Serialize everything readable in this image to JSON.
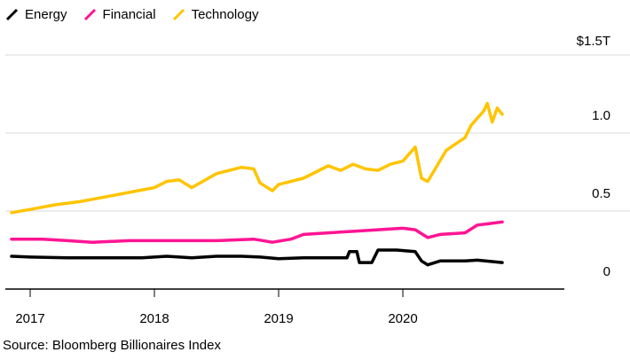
{
  "colors": {
    "energy": "#000000",
    "financial": "#ff1493",
    "technology": "#ffc400",
    "grid": "#d9d9d9",
    "axis": "#000000"
  },
  "source": "Source: Bloomberg Billionaires Index",
  "chart_data": {
    "type": "line",
    "y_unit_label": "$1.5T",
    "ylim": [
      0,
      1.5
    ],
    "y_ticks": [
      {
        "value": 0,
        "label": "0"
      },
      {
        "value": 0.5,
        "label": "0.5"
      },
      {
        "value": 1.0,
        "label": "1.0"
      },
      {
        "value": 1.5,
        "label": "$1.5T"
      }
    ],
    "xlim": [
      2016.8,
      2021.3
    ],
    "x_ticks": [
      {
        "value": 2017,
        "label": "2017"
      },
      {
        "value": 2018,
        "label": "2018"
      },
      {
        "value": 2019,
        "label": "2019"
      },
      {
        "value": 2020,
        "label": "2020"
      }
    ],
    "grid": true,
    "legend_position": "top-left",
    "series": [
      {
        "name": "Energy",
        "color": "#000000",
        "points": [
          [
            2016.85,
            0.21
          ],
          [
            2017.0,
            0.205
          ],
          [
            2017.3,
            0.2
          ],
          [
            2017.6,
            0.2
          ],
          [
            2017.9,
            0.2
          ],
          [
            2018.1,
            0.21
          ],
          [
            2018.3,
            0.2
          ],
          [
            2018.5,
            0.21
          ],
          [
            2018.7,
            0.21
          ],
          [
            2018.85,
            0.205
          ],
          [
            2019.0,
            0.195
          ],
          [
            2019.2,
            0.2
          ],
          [
            2019.4,
            0.2
          ],
          [
            2019.55,
            0.2
          ],
          [
            2019.57,
            0.24
          ],
          [
            2019.63,
            0.24
          ],
          [
            2019.65,
            0.17
          ],
          [
            2019.75,
            0.17
          ],
          [
            2019.8,
            0.25
          ],
          [
            2019.95,
            0.25
          ],
          [
            2020.1,
            0.24
          ],
          [
            2020.15,
            0.18
          ],
          [
            2020.2,
            0.155
          ],
          [
            2020.3,
            0.18
          ],
          [
            2020.5,
            0.18
          ],
          [
            2020.6,
            0.185
          ],
          [
            2020.8,
            0.17
          ]
        ]
      },
      {
        "name": "Financial",
        "color": "#ff1493",
        "points": [
          [
            2016.85,
            0.32
          ],
          [
            2017.1,
            0.32
          ],
          [
            2017.3,
            0.31
          ],
          [
            2017.5,
            0.3
          ],
          [
            2017.8,
            0.31
          ],
          [
            2018.0,
            0.31
          ],
          [
            2018.2,
            0.31
          ],
          [
            2018.5,
            0.31
          ],
          [
            2018.8,
            0.32
          ],
          [
            2018.95,
            0.3
          ],
          [
            2019.1,
            0.32
          ],
          [
            2019.2,
            0.35
          ],
          [
            2019.4,
            0.36
          ],
          [
            2019.6,
            0.37
          ],
          [
            2019.8,
            0.38
          ],
          [
            2020.0,
            0.39
          ],
          [
            2020.1,
            0.38
          ],
          [
            2020.2,
            0.33
          ],
          [
            2020.3,
            0.35
          ],
          [
            2020.5,
            0.36
          ],
          [
            2020.6,
            0.41
          ],
          [
            2020.7,
            0.42
          ],
          [
            2020.8,
            0.43
          ]
        ]
      },
      {
        "name": "Technology",
        "color": "#ffc400",
        "points": [
          [
            2016.85,
            0.49
          ],
          [
            2017.0,
            0.51
          ],
          [
            2017.2,
            0.54
          ],
          [
            2017.4,
            0.56
          ],
          [
            2017.6,
            0.59
          ],
          [
            2017.8,
            0.62
          ],
          [
            2018.0,
            0.65
          ],
          [
            2018.1,
            0.69
          ],
          [
            2018.2,
            0.7
          ],
          [
            2018.3,
            0.65
          ],
          [
            2018.5,
            0.74
          ],
          [
            2018.7,
            0.78
          ],
          [
            2018.8,
            0.77
          ],
          [
            2018.85,
            0.68
          ],
          [
            2018.95,
            0.63
          ],
          [
            2019.0,
            0.67
          ],
          [
            2019.2,
            0.71
          ],
          [
            2019.4,
            0.79
          ],
          [
            2019.5,
            0.76
          ],
          [
            2019.6,
            0.8
          ],
          [
            2019.7,
            0.77
          ],
          [
            2019.8,
            0.76
          ],
          [
            2019.9,
            0.8
          ],
          [
            2020.0,
            0.82
          ],
          [
            2020.1,
            0.91
          ],
          [
            2020.15,
            0.71
          ],
          [
            2020.2,
            0.69
          ],
          [
            2020.35,
            0.89
          ],
          [
            2020.5,
            0.97
          ],
          [
            2020.55,
            1.05
          ],
          [
            2020.65,
            1.14
          ],
          [
            2020.68,
            1.19
          ],
          [
            2020.72,
            1.07
          ],
          [
            2020.76,
            1.16
          ],
          [
            2020.8,
            1.12
          ]
        ]
      }
    ]
  }
}
